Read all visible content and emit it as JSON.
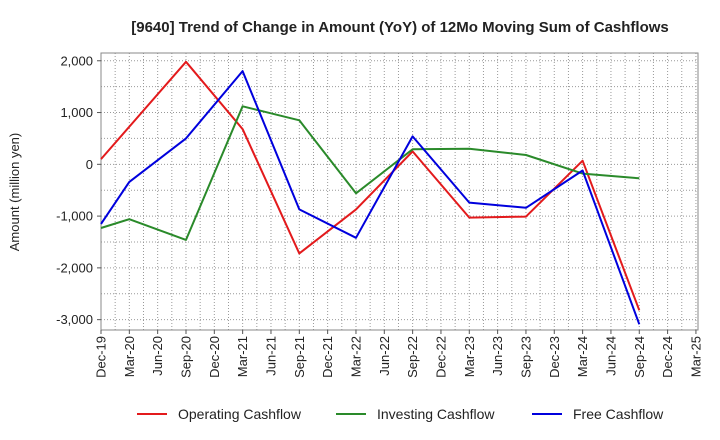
{
  "chart_data": {
    "type": "line",
    "title": "[9640]  Trend of Change in Amount (YoY) of 12Mo Moving Sum of Cashflows",
    "xlabel": "",
    "ylabel": "Amount (million yen)",
    "categories": [
      "Dec-19",
      "Mar-20",
      "Jun-20",
      "Sep-20",
      "Dec-20",
      "Mar-21",
      "Jun-21",
      "Sep-21",
      "Dec-21",
      "Mar-22",
      "Jun-22",
      "Sep-22",
      "Dec-22",
      "Mar-23",
      "Jun-23",
      "Sep-23",
      "Dec-23",
      "Mar-24",
      "Jun-24",
      "Sep-24",
      "Dec-24",
      "Mar-25"
    ],
    "ylim": [
      -3200,
      2150
    ],
    "yticks": [
      2000,
      1000,
      0,
      -1000,
      -2000,
      -3000
    ],
    "ytick_labels": [
      "2,000",
      "1,000",
      "0",
      "-1,000",
      "-2,000",
      "-3,000"
    ],
    "grid": true,
    "legend_position": "bottom",
    "series": [
      {
        "name": "Operating Cashflow",
        "color": "#e31a1c",
        "values": [
          100,
          null,
          null,
          1980,
          null,
          680,
          null,
          -1720,
          null,
          -870,
          null,
          250,
          null,
          -1030,
          null,
          -1010,
          null,
          70,
          null,
          -2820,
          null,
          null
        ]
      },
      {
        "name": "Investing Cashflow",
        "color": "#2a8a2a",
        "values": [
          -1230,
          -1060,
          null,
          -1460,
          null,
          1120,
          null,
          850,
          null,
          -560,
          null,
          290,
          null,
          300,
          null,
          180,
          null,
          -180,
          null,
          -270,
          null,
          null
        ]
      },
      {
        "name": "Free Cashflow",
        "color": "#0000dd",
        "values": [
          -1150,
          -340,
          null,
          500,
          null,
          1800,
          null,
          -870,
          null,
          -1420,
          null,
          540,
          null,
          -740,
          null,
          -840,
          null,
          -120,
          null,
          -3090,
          null,
          null
        ]
      }
    ]
  }
}
